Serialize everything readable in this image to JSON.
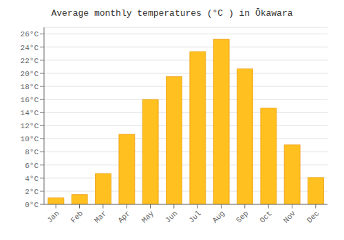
{
  "chart_data": {
    "type": "bar",
    "title": "Average monthly temperatures (°C ) in Ōkawara",
    "categories": [
      "Jan",
      "Feb",
      "Mar",
      "Apr",
      "May",
      "Jun",
      "Jul",
      "Aug",
      "Sep",
      "Oct",
      "Nov",
      "Dec"
    ],
    "values": [
      1.0,
      1.5,
      4.7,
      10.7,
      16.0,
      19.5,
      23.3,
      25.2,
      20.7,
      14.7,
      9.1,
      4.1
    ],
    "color": "#FFC020",
    "ylim": [
      0,
      27
    ],
    "yticks": [
      {
        "value": 0,
        "label": "0°C"
      },
      {
        "value": 2,
        "label": "2°C"
      },
      {
        "value": 4,
        "label": "4°C"
      },
      {
        "value": 6,
        "label": "6°C"
      },
      {
        "value": 8,
        "label": "8°C"
      },
      {
        "value": 10,
        "label": "10°C"
      },
      {
        "value": 12,
        "label": "12°C"
      },
      {
        "value": 14,
        "label": "14°C"
      },
      {
        "value": 16,
        "label": "16°C"
      },
      {
        "value": 18,
        "label": "18°C"
      },
      {
        "value": 20,
        "label": "20°C"
      },
      {
        "value": 22,
        "label": "22°C"
      },
      {
        "value": 24,
        "label": "24°C"
      },
      {
        "value": 26,
        "label": "26°C"
      }
    ],
    "grid": true
  }
}
